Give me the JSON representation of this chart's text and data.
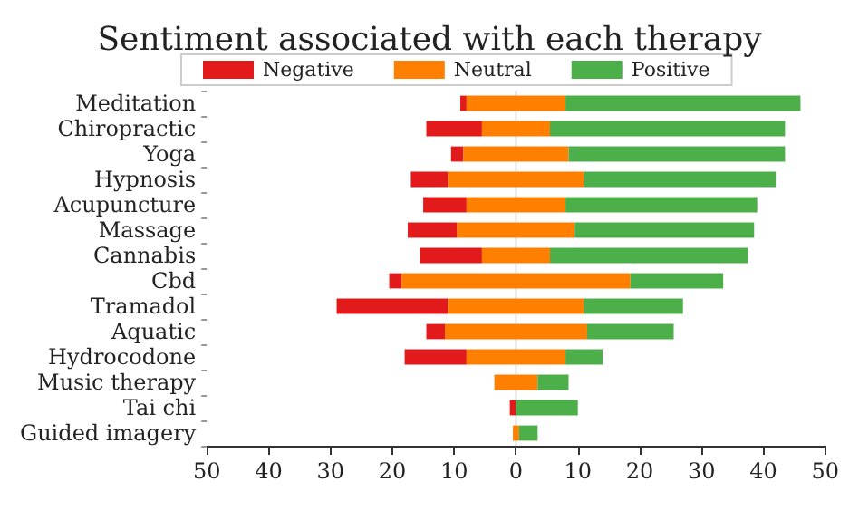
{
  "chart_data": {
    "type": "bar",
    "orientation": "horizontal",
    "title": "Sentiment associated with each therapy",
    "categories": [
      "Meditation",
      "Chiropractic",
      "Yoga",
      "Hypnosis",
      "Acupuncture",
      "Massage",
      "Cannabis",
      "Cbd",
      "Tramadol",
      "Aquatic",
      "Hydrocodone",
      "Music therapy",
      "Tai chi",
      "Guided imagery"
    ],
    "series": [
      {
        "name": "Negative",
        "color": "#e31a1c",
        "values": [
          1,
          9,
          2,
          6,
          7,
          8,
          10,
          2,
          18,
          3,
          10,
          null,
          1,
          null
        ],
        "base": [
          -9,
          -14.5,
          -10.5,
          -17,
          -15,
          -17.5,
          -15.5,
          -20.5,
          -29,
          -14.5,
          -18,
          null,
          -1,
          null
        ]
      },
      {
        "name": "Neutral",
        "color": "#ff7f00",
        "values": [
          16,
          11,
          17,
          22,
          16,
          19,
          11,
          37,
          22,
          23,
          16,
          7,
          null,
          1
        ],
        "base": [
          -8,
          -5.5,
          -8.5,
          -11,
          -8,
          -9.5,
          -5.5,
          -18.5,
          -11,
          -11.5,
          -8,
          -3.5,
          null,
          -0.5
        ]
      },
      {
        "name": "Positive",
        "color": "#4daf4a",
        "values": [
          38,
          38,
          35,
          31,
          31,
          29,
          32,
          15,
          16,
          14,
          6,
          5,
          10,
          3
        ],
        "base": [
          8,
          5.5,
          8.5,
          11,
          8,
          9.5,
          5.5,
          18.5,
          11,
          11.5,
          8,
          3.5,
          0,
          0.5
        ]
      }
    ],
    "xlim": [
      -50,
      50
    ],
    "xticks": [
      {
        "value": -50,
        "label": "50"
      },
      {
        "value": -40,
        "label": "40"
      },
      {
        "value": -30,
        "label": "30"
      },
      {
        "value": -20,
        "label": "20"
      },
      {
        "value": -10,
        "label": "10"
      },
      0,
      10,
      20,
      30,
      40,
      50
    ],
    "ref_lines": [
      {
        "axis": "x",
        "value": 0,
        "color": "#dddddd"
      }
    ],
    "legend": "top left",
    "grid": false
  }
}
